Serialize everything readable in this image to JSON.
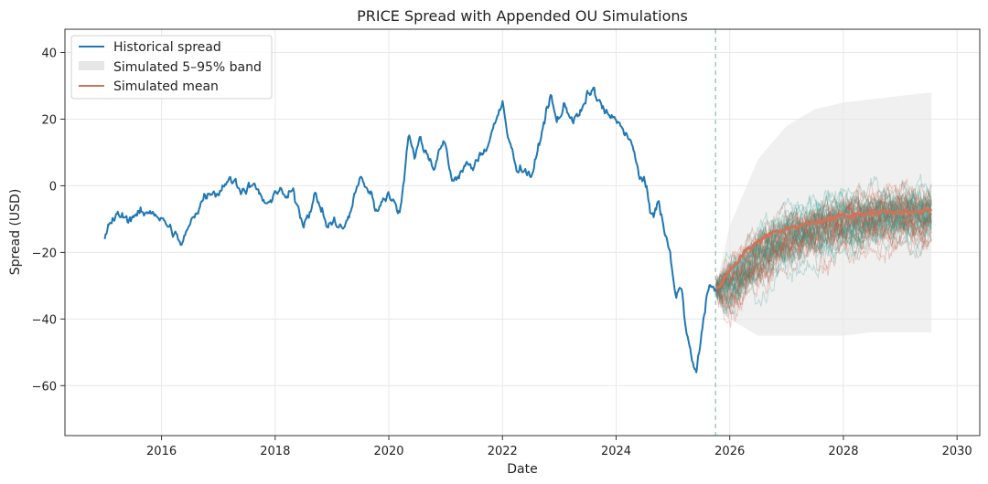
{
  "chart_data": {
    "type": "line",
    "title": "PRICE Spread with Appended OU Simulations",
    "xlabel": "Date",
    "ylabel": "Spread (USD)",
    "xlim": [
      2014.3,
      2030.4
    ],
    "ylim": [
      -75,
      47
    ],
    "x_ticks": [
      2016,
      2018,
      2020,
      2022,
      2024,
      2026,
      2028,
      2030
    ],
    "y_ticks": [
      40,
      20,
      0,
      -20,
      -40,
      -60
    ],
    "grid": true,
    "legend_position": "top-left",
    "simulation_start": 2025.75,
    "colors": {
      "historical": "#1f77b4",
      "band": "#e6e6e6",
      "mean": "#d0735a",
      "sim_teal": "#2a9d8f",
      "sim_rust": "#c1573d",
      "divider": "#7fbfb3",
      "frame": "#333333"
    },
    "series": [
      {
        "name": "Historical spread",
        "points": [
          [
            2015.0,
            -16
          ],
          [
            2015.1,
            -11
          ],
          [
            2015.25,
            -9
          ],
          [
            2015.4,
            -10
          ],
          [
            2015.55,
            -8
          ],
          [
            2015.7,
            -9
          ],
          [
            2015.85,
            -7
          ],
          [
            2016.0,
            -10
          ],
          [
            2016.1,
            -12
          ],
          [
            2016.25,
            -15
          ],
          [
            2016.35,
            -18
          ],
          [
            2016.45,
            -14
          ],
          [
            2016.6,
            -8
          ],
          [
            2016.75,
            -3
          ],
          [
            2016.9,
            -1
          ],
          [
            2017.0,
            -2
          ],
          [
            2017.15,
            2
          ],
          [
            2017.3,
            1
          ],
          [
            2017.45,
            -1
          ],
          [
            2017.6,
            0
          ],
          [
            2017.75,
            -3
          ],
          [
            2017.85,
            -7
          ],
          [
            2017.95,
            -3
          ],
          [
            2018.0,
            -1
          ],
          [
            2018.1,
            -2
          ],
          [
            2018.2,
            -4
          ],
          [
            2018.3,
            -2
          ],
          [
            2018.4,
            -6
          ],
          [
            2018.5,
            -11
          ],
          [
            2018.6,
            -7
          ],
          [
            2018.7,
            -3
          ],
          [
            2018.8,
            -6
          ],
          [
            2018.9,
            -12
          ],
          [
            2019.05,
            -11
          ],
          [
            2019.2,
            -13
          ],
          [
            2019.3,
            -10
          ],
          [
            2019.4,
            -2
          ],
          [
            2019.5,
            2
          ],
          [
            2019.6,
            0
          ],
          [
            2019.7,
            -3
          ],
          [
            2019.8,
            -8
          ],
          [
            2019.9,
            -3
          ],
          [
            2020.0,
            -2
          ],
          [
            2020.1,
            -6
          ],
          [
            2020.2,
            -8
          ],
          [
            2020.3,
            8
          ],
          [
            2020.35,
            17
          ],
          [
            2020.45,
            9
          ],
          [
            2020.55,
            14
          ],
          [
            2020.65,
            10
          ],
          [
            2020.8,
            6
          ],
          [
            2020.9,
            11
          ],
          [
            2021.0,
            12
          ],
          [
            2021.1,
            2
          ],
          [
            2021.2,
            3
          ],
          [
            2021.35,
            6
          ],
          [
            2021.5,
            5
          ],
          [
            2021.6,
            9
          ],
          [
            2021.75,
            13
          ],
          [
            2021.9,
            21
          ],
          [
            2022.0,
            24
          ],
          [
            2022.1,
            14
          ],
          [
            2022.25,
            6
          ],
          [
            2022.4,
            5
          ],
          [
            2022.5,
            3
          ],
          [
            2022.6,
            8
          ],
          [
            2022.75,
            21
          ],
          [
            2022.85,
            27
          ],
          [
            2022.95,
            19
          ],
          [
            2023.1,
            24
          ],
          [
            2023.25,
            20
          ],
          [
            2023.4,
            22
          ],
          [
            2023.5,
            27
          ],
          [
            2023.6,
            29
          ],
          [
            2023.7,
            25
          ],
          [
            2023.85,
            21
          ],
          [
            2024.0,
            19
          ],
          [
            2024.1,
            18
          ],
          [
            2024.25,
            14
          ],
          [
            2024.4,
            3
          ],
          [
            2024.5,
            2
          ],
          [
            2024.6,
            -9
          ],
          [
            2024.75,
            -5
          ],
          [
            2024.85,
            -14
          ],
          [
            2024.95,
            -20
          ],
          [
            2025.05,
            -34
          ],
          [
            2025.15,
            -30
          ],
          [
            2025.25,
            -44
          ],
          [
            2025.35,
            -54
          ],
          [
            2025.42,
            -56
          ],
          [
            2025.5,
            -45
          ],
          [
            2025.6,
            -32
          ],
          [
            2025.7,
            -30
          ],
          [
            2025.75,
            -31
          ]
        ]
      },
      {
        "name": "Simulated mean",
        "points": [
          [
            2025.75,
            -31
          ],
          [
            2026.0,
            -26
          ],
          [
            2026.25,
            -20
          ],
          [
            2026.5,
            -17
          ],
          [
            2026.75,
            -14
          ],
          [
            2027.0,
            -13
          ],
          [
            2027.25,
            -12
          ],
          [
            2027.5,
            -11
          ],
          [
            2027.75,
            -10
          ],
          [
            2028.0,
            -9
          ],
          [
            2028.25,
            -9
          ],
          [
            2028.5,
            -8
          ],
          [
            2028.75,
            -8
          ],
          [
            2029.0,
            -8
          ],
          [
            2029.25,
            -8
          ],
          [
            2029.55,
            -7
          ]
        ]
      }
    ],
    "band": {
      "name": "Simulated 5–95% band",
      "x": [
        2025.75,
        2026.0,
        2026.5,
        2027.0,
        2027.5,
        2028.0,
        2028.5,
        2029.0,
        2029.55
      ],
      "lower": [
        -31,
        -40,
        -45,
        -45,
        -45,
        -45,
        -44,
        -44,
        -44
      ],
      "upper": [
        -31,
        -12,
        8,
        18,
        23,
        25,
        26,
        27,
        28
      ]
    },
    "simulation_paths": 60,
    "legend": [
      "Historical spread",
      "Simulated 5–95% band",
      "Simulated mean"
    ]
  }
}
